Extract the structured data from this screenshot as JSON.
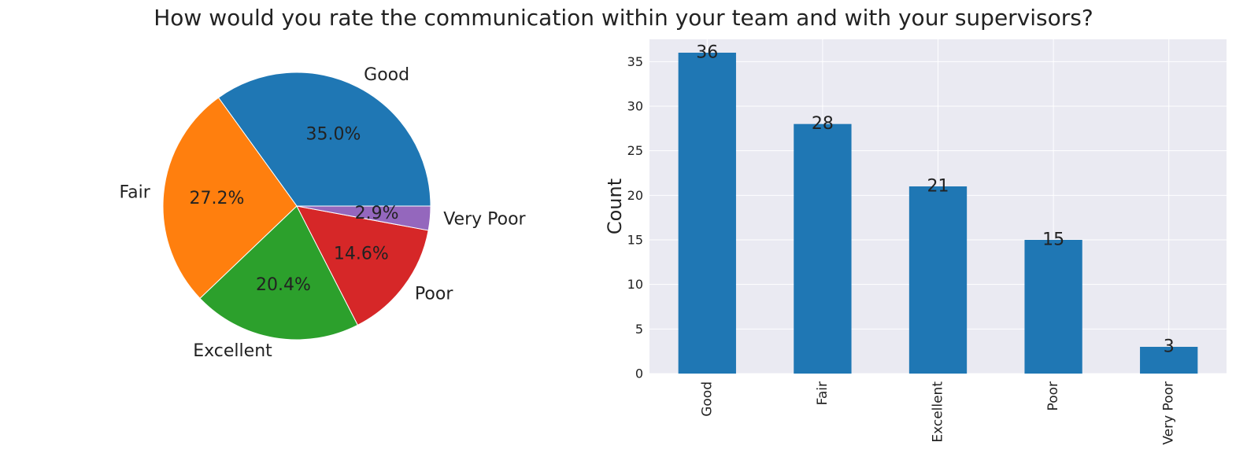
{
  "title": "How would you rate the communication within your team and with your supervisors?",
  "colors": {
    "pie": [
      "#1f77b4",
      "#ff7f0e",
      "#2ca02c",
      "#d62728",
      "#9467bd"
    ],
    "bar": "#1f77b4",
    "axes_bg": "#eaeaf2",
    "grid": "#ffffff",
    "text": "#222222"
  },
  "chart_data": [
    {
      "type": "pie",
      "labels": [
        "Good",
        "Fair",
        "Excellent",
        "Poor",
        "Very Poor"
      ],
      "values": [
        36,
        28,
        21,
        15,
        3
      ],
      "percent_labels": [
        "35.0%",
        "27.2%",
        "20.4%",
        "14.6%",
        "2.9%"
      ],
      "start_angle": 0,
      "direction": "counterclockwise"
    },
    {
      "type": "bar",
      "categories": [
        "Good",
        "Fair",
        "Excellent",
        "Poor",
        "Very Poor"
      ],
      "values": [
        36,
        28,
        21,
        15,
        3
      ],
      "value_labels": [
        "36",
        "28",
        "21",
        "15",
        "3"
      ],
      "ylabel": "Count",
      "xlabel": "",
      "ylim": [
        0,
        37.5
      ],
      "yticks": [
        0,
        5,
        10,
        15,
        20,
        25,
        30,
        35
      ],
      "grid": true
    }
  ]
}
